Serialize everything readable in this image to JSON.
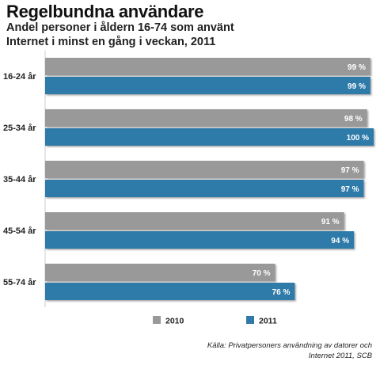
{
  "chart_data": {
    "type": "bar",
    "orientation": "horizontal",
    "title": "Regelbundna användare",
    "subtitle": "Andel personer i åldern 16-74 som använt Internet i minst en gång i veckan, 2011",
    "categories": [
      "16-24 år",
      "25-34 år",
      "35-44 år",
      "45-54 år",
      "55-74 år"
    ],
    "series": [
      {
        "name": "2010",
        "values": [
          99,
          98,
          97,
          91,
          70
        ],
        "labels": [
          "99 %",
          "98 %",
          "97 %",
          "91 %",
          "70 %"
        ],
        "color": "#999999"
      },
      {
        "name": "2011",
        "values": [
          99,
          100,
          97,
          94,
          76
        ],
        "labels": [
          "99 %",
          "100 %",
          "97 %",
          "94 %",
          "76 %"
        ],
        "color": "#2f7aa9"
      }
    ],
    "xlim": [
      0,
      100
    ],
    "grid": false,
    "legend": "bottom"
  },
  "source": "Källa: Privatpersoners användning av datorer och Internet 2011, SCB"
}
